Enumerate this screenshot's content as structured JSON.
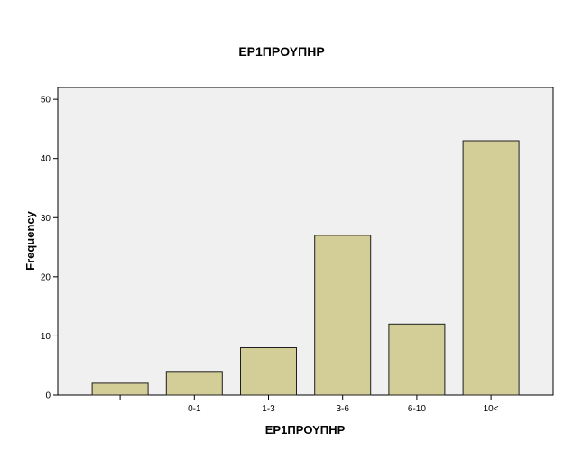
{
  "chart_data": {
    "type": "bar",
    "title": "ΕΡ1ΠΡΟΥΠΗΡ",
    "xlabel": "ΕΡ1ΠΡΟΥΠΗΡ",
    "ylabel": "Frequency",
    "categories": [
      "",
      "0-1",
      "1-3",
      "3-6",
      "6-10",
      "10<"
    ],
    "values": [
      2,
      4,
      8,
      27,
      12,
      43
    ],
    "ylim": [
      0,
      52
    ],
    "yticks": [
      0,
      10,
      20,
      30,
      40,
      50
    ],
    "grid": false,
    "colors": {
      "plot_background": "#f0f0f0",
      "bar_fill": "#d3ce97",
      "bar_stroke": "#1f1f1f",
      "axis": "#000000"
    }
  }
}
